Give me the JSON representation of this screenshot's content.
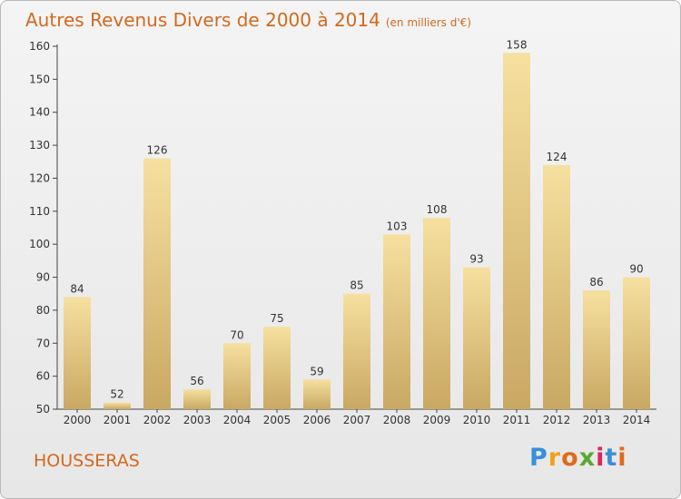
{
  "title": "Autres Revenus Divers de 2000 à 2014",
  "subtitle": "(en milliers d'€)",
  "commune": "HOUSSERAS",
  "logo": {
    "letters": [
      "P",
      "r",
      "o",
      "x",
      "i",
      "t",
      "i"
    ],
    "colors": [
      "#3a8fd8",
      "#f0a01a",
      "#e06a1a",
      "#5aa832",
      "#d8285a",
      "#3a8fd8",
      "#e06a1a"
    ]
  },
  "colors": {
    "title": "#d2691e",
    "bar_light": "#f6e0a0",
    "bar_dark": "#c9a862"
  },
  "chart_data": {
    "type": "bar",
    "title": "Autres Revenus Divers de 2000 à 2014",
    "subtitle": "(en milliers d'€)",
    "categories": [
      "2000",
      "2001",
      "2002",
      "2003",
      "2004",
      "2005",
      "2006",
      "2007",
      "2008",
      "2009",
      "2010",
      "2011",
      "2012",
      "2013",
      "2014"
    ],
    "values": [
      84,
      52,
      126,
      56,
      70,
      75,
      59,
      85,
      103,
      108,
      93,
      158,
      124,
      86,
      90
    ],
    "ylim": [
      50,
      160
    ],
    "yticks": [
      50,
      60,
      70,
      80,
      90,
      100,
      110,
      120,
      130,
      140,
      150,
      160
    ],
    "grid": false,
    "legend": "none"
  }
}
